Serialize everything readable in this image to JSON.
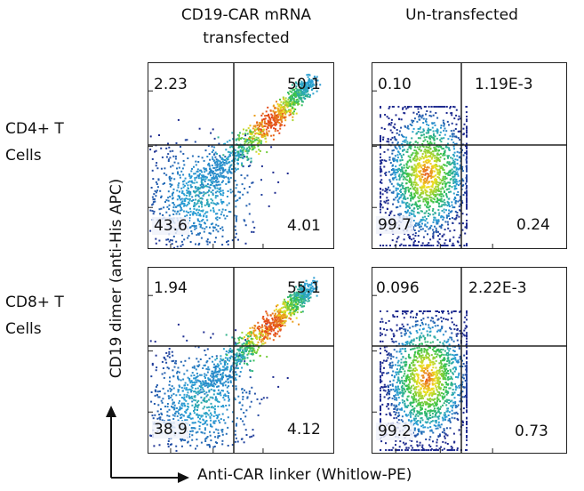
{
  "columns": [
    "CD19-CAR mRNA transfected",
    "Un-transfected"
  ],
  "rows": [
    "CD4+ T Cells",
    "CD8+ T Cells"
  ],
  "x_axis_title": "Anti-CAR linker (Whitlow-PE)",
  "y_axis_title": "CD19 dimer (anti-His APC)",
  "colors": {
    "density_low": "#1f2b8f",
    "density_mid_low": "#2a9fd6",
    "density_mid": "#35c24a",
    "density_mid_high": "#f0e020",
    "density_high": "#e0201a",
    "gate_line": "#222222"
  },
  "chart_data": [
    {
      "type": "scatter",
      "subtype": "flow-cytometry-density",
      "row": "CD4+ T Cells",
      "column": "CD19-CAR mRNA transfected",
      "quadrants": {
        "upper_left": "2.23",
        "upper_right": "50.1",
        "lower_left": "43.6",
        "lower_right": "4.01"
      },
      "population": "diagonal",
      "scale": "log"
    },
    {
      "type": "scatter",
      "subtype": "flow-cytometry-density",
      "row": "CD4+ T Cells",
      "column": "Un-transfected",
      "quadrants": {
        "upper_left": "0.10",
        "upper_right": "1.19E-3",
        "lower_left": "99.7",
        "lower_right": "0.24"
      },
      "population": "negative",
      "scale": "log"
    },
    {
      "type": "scatter",
      "subtype": "flow-cytometry-density",
      "row": "CD8+ T Cells",
      "column": "CD19-CAR mRNA transfected",
      "quadrants": {
        "upper_left": "1.94",
        "upper_right": "55.1",
        "lower_left": "38.9",
        "lower_right": "4.12"
      },
      "population": "diagonal",
      "scale": "log"
    },
    {
      "type": "scatter",
      "subtype": "flow-cytometry-density",
      "row": "CD8+ T Cells",
      "column": "Un-transfected",
      "quadrants": {
        "upper_left": "0.096",
        "upper_right": "2.22E-3",
        "lower_left": "99.2",
        "lower_right": "0.73"
      },
      "population": "negative",
      "scale": "log"
    }
  ]
}
